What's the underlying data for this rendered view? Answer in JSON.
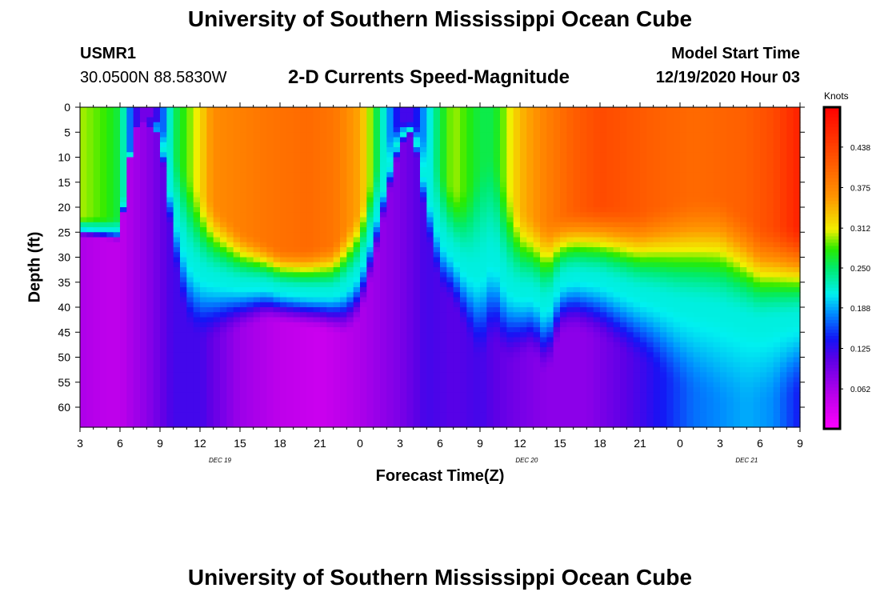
{
  "header": {
    "title": "University of Southern Mississippi Ocean Cube",
    "station": "USMR1",
    "coordinates": "30.0500N 88.5830W",
    "chart_title": "2-D Currents Speed-Magnitude",
    "model_start_label": "Model Start Time",
    "model_start_value": "12/19/2020 Hour 03"
  },
  "footer": {
    "title": "University of Southern Mississippi Ocean Cube"
  },
  "colors": {
    "background": "#ffffff",
    "text": "#000000"
  },
  "chart_data": {
    "type": "heatmap",
    "title": "2-D Currents Speed-Magnitude",
    "xlabel": "Forecast Time(Z)",
    "ylabel": "Depth (ft)",
    "x_unit": "forecast hours since 12/19/2020 03Z",
    "x_range": [
      0,
      54
    ],
    "y_range": [
      0,
      64
    ],
    "y_reversed": true,
    "y_ticks": [
      0,
      5,
      10,
      15,
      20,
      25,
      30,
      35,
      40,
      45,
      50,
      55,
      60
    ],
    "x_ticks": [
      {
        "hour": 0,
        "label": "3"
      },
      {
        "hour": 3,
        "label": "6"
      },
      {
        "hour": 6,
        "label": "9"
      },
      {
        "hour": 9,
        "label": "12"
      },
      {
        "hour": 12,
        "label": "15"
      },
      {
        "hour": 15,
        "label": "18"
      },
      {
        "hour": 18,
        "label": "21"
      },
      {
        "hour": 21,
        "label": "0"
      },
      {
        "hour": 24,
        "label": "3"
      },
      {
        "hour": 27,
        "label": "6"
      },
      {
        "hour": 30,
        "label": "9"
      },
      {
        "hour": 33,
        "label": "12"
      },
      {
        "hour": 36,
        "label": "15"
      },
      {
        "hour": 39,
        "label": "18"
      },
      {
        "hour": 42,
        "label": "21"
      },
      {
        "hour": 45,
        "label": "0"
      },
      {
        "hour": 48,
        "label": "3"
      },
      {
        "hour": 51,
        "label": "6"
      },
      {
        "hour": 54,
        "label": "9"
      }
    ],
    "date_labels": [
      {
        "hour": 10.5,
        "label": "DEC 19"
      },
      {
        "hour": 33.5,
        "label": "DEC 20"
      },
      {
        "hour": 50,
        "label": "DEC 21"
      }
    ],
    "colorbar": {
      "title": "Knots",
      "min": 0.0,
      "max": 0.5,
      "tick_values": [
        0.062,
        0.125,
        0.188,
        0.25,
        0.312,
        0.375,
        0.438
      ],
      "tick_labels": [
        "0.062",
        "0.125",
        "0.188",
        "0.250",
        "0.312",
        "0.375",
        "0.438"
      ]
    },
    "surface_speed_knots": [
      [
        0,
        0.3
      ],
      [
        2,
        0.28
      ],
      [
        3,
        0.26
      ],
      [
        4,
        0.14
      ],
      [
        5,
        0.08
      ],
      [
        6,
        0.14
      ],
      [
        7,
        0.25
      ],
      [
        9,
        0.32
      ],
      [
        10,
        0.37
      ],
      [
        14,
        0.39
      ],
      [
        17,
        0.4
      ],
      [
        19,
        0.39
      ],
      [
        21,
        0.35
      ],
      [
        22,
        0.28
      ],
      [
        23,
        0.2
      ],
      [
        24,
        0.12
      ],
      [
        25,
        0.12
      ],
      [
        26,
        0.2
      ],
      [
        27,
        0.26
      ],
      [
        28,
        0.3
      ],
      [
        29,
        0.28
      ],
      [
        30,
        0.26
      ],
      [
        31,
        0.26
      ],
      [
        32,
        0.3
      ],
      [
        33,
        0.34
      ],
      [
        35,
        0.38
      ],
      [
        37,
        0.41
      ],
      [
        39,
        0.43
      ],
      [
        43,
        0.41
      ],
      [
        46,
        0.4
      ],
      [
        50,
        0.41
      ],
      [
        52,
        0.43
      ],
      [
        54,
        0.47
      ]
    ],
    "mixed_layer_depth_ft": [
      [
        0,
        22
      ],
      [
        3,
        22
      ],
      [
        4,
        4
      ],
      [
        5,
        2
      ],
      [
        6,
        3
      ],
      [
        7,
        8
      ],
      [
        9,
        16
      ],
      [
        12,
        24
      ],
      [
        15,
        28
      ],
      [
        17,
        28
      ],
      [
        19,
        27
      ],
      [
        21,
        20
      ],
      [
        22,
        13
      ],
      [
        23,
        6
      ],
      [
        24,
        3
      ],
      [
        25,
        3
      ],
      [
        26,
        6
      ],
      [
        27,
        12
      ],
      [
        28,
        16
      ],
      [
        29,
        16
      ],
      [
        30,
        10
      ],
      [
        31,
        8
      ],
      [
        32,
        15
      ],
      [
        33,
        20
      ],
      [
        35,
        22
      ],
      [
        37,
        20
      ],
      [
        39,
        19
      ],
      [
        42,
        20
      ],
      [
        45,
        18
      ],
      [
        48,
        17
      ],
      [
        51,
        23
      ],
      [
        54,
        23
      ]
    ],
    "bottom_layer_top_ft": [
      [
        0,
        26
      ],
      [
        3,
        27
      ],
      [
        4,
        5
      ],
      [
        5,
        3
      ],
      [
        6,
        6
      ],
      [
        7,
        30
      ],
      [
        8,
        44
      ],
      [
        9,
        47
      ],
      [
        10,
        47
      ],
      [
        12,
        45
      ],
      [
        13,
        44
      ],
      [
        14,
        43
      ],
      [
        16,
        44
      ],
      [
        18,
        45
      ],
      [
        20,
        46
      ],
      [
        21,
        43
      ],
      [
        22,
        33
      ],
      [
        23,
        20
      ],
      [
        24,
        8
      ],
      [
        25,
        5
      ],
      [
        26,
        25
      ],
      [
        27,
        37
      ],
      [
        28,
        40
      ],
      [
        29,
        46
      ],
      [
        30,
        52
      ],
      [
        31,
        47
      ],
      [
        32,
        52
      ],
      [
        33,
        51
      ],
      [
        34,
        50
      ],
      [
        35,
        55
      ],
      [
        36,
        46
      ],
      [
        37,
        45
      ],
      [
        39,
        47
      ],
      [
        41,
        50
      ],
      [
        43,
        53
      ],
      [
        45,
        57
      ],
      [
        48,
        60
      ],
      [
        51,
        60
      ],
      [
        54,
        58
      ]
    ],
    "deep_speed_knots": [
      [
        0,
        0.06
      ],
      [
        2,
        0.05
      ],
      [
        3,
        0.05
      ],
      [
        5,
        0.08
      ],
      [
        7,
        0.12
      ],
      [
        9,
        0.12
      ],
      [
        12,
        0.07
      ],
      [
        15,
        0.05
      ],
      [
        18,
        0.04
      ],
      [
        21,
        0.06
      ],
      [
        24,
        0.09
      ],
      [
        26,
        0.12
      ],
      [
        28,
        0.11
      ],
      [
        30,
        0.12
      ],
      [
        32,
        0.1
      ],
      [
        35,
        0.08
      ],
      [
        38,
        0.08
      ],
      [
        42,
        0.12
      ],
      [
        46,
        0.17
      ],
      [
        50,
        0.19
      ],
      [
        52,
        0.18
      ],
      [
        54,
        0.14
      ]
    ]
  }
}
